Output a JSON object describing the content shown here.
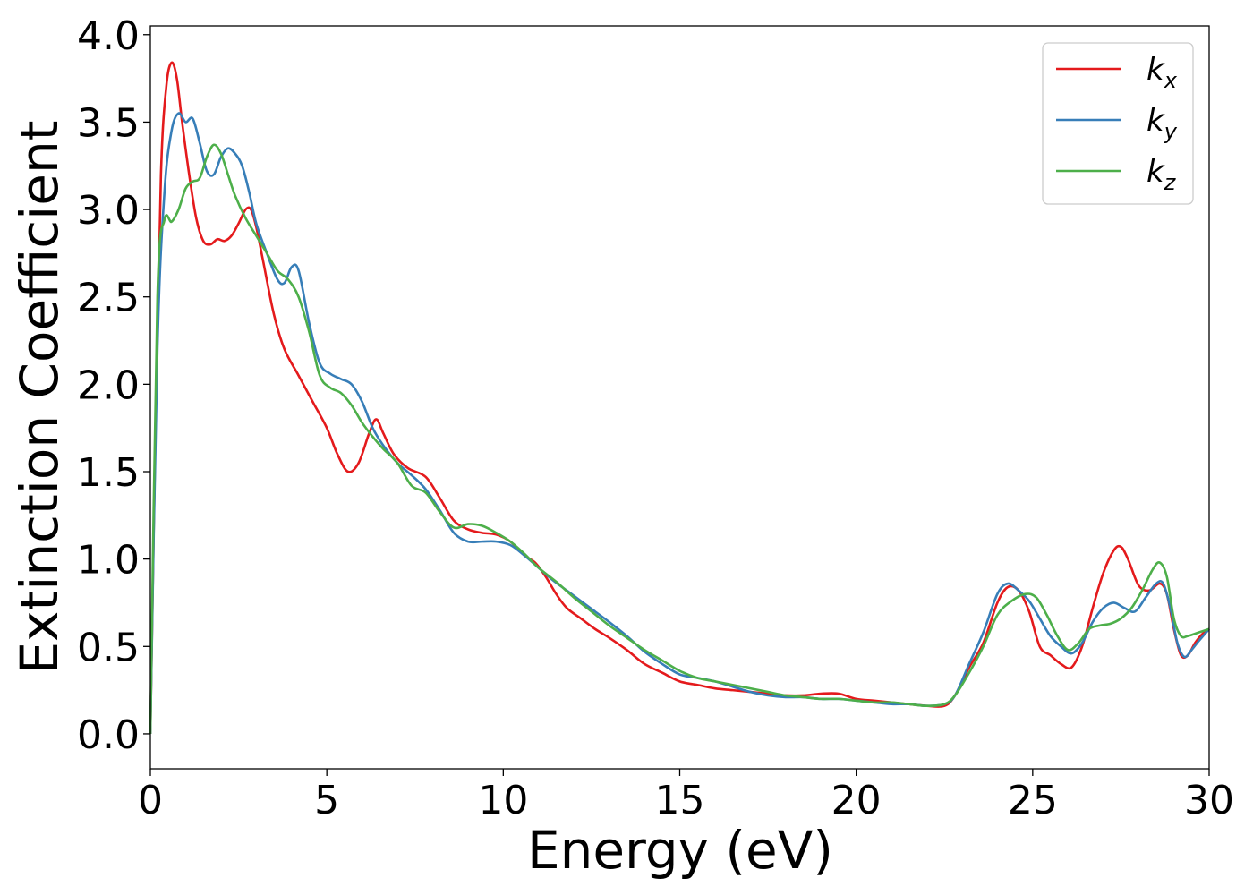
{
  "chart_data": {
    "type": "line",
    "title": "",
    "xlabel": "Energy (eV)",
    "ylabel": "Extinction Coefficient",
    "xlim": [
      0,
      30
    ],
    "ylim": [
      -0.2,
      4.05
    ],
    "xticks": [
      0,
      5,
      10,
      15,
      20,
      25,
      30
    ],
    "xtick_labels": [
      "0",
      "5",
      "10",
      "15",
      "20",
      "25",
      "30"
    ],
    "yticks": [
      0.0,
      0.5,
      1.0,
      1.5,
      2.0,
      2.5,
      3.0,
      3.5,
      4.0
    ],
    "ytick_labels": [
      "0.0",
      "0.5",
      "1.0",
      "1.5",
      "2.0",
      "2.5",
      "3.0",
      "3.5",
      "4.0"
    ],
    "grid": false,
    "legend_position": "top-right",
    "series": [
      {
        "name": "k",
        "subscript": "x",
        "color": "#e41a1c",
        "x": [
          0,
          0.15,
          0.3,
          0.45,
          0.6,
          0.75,
          0.9,
          1.1,
          1.3,
          1.5,
          1.7,
          1.9,
          2.1,
          2.3,
          2.5,
          2.7,
          2.85,
          3.0,
          3.2,
          3.5,
          3.8,
          4.2,
          4.6,
          5.0,
          5.3,
          5.6,
          5.9,
          6.2,
          6.4,
          6.6,
          6.9,
          7.3,
          7.8,
          8.2,
          8.6,
          9.0,
          9.4,
          9.8,
          10.2,
          10.6,
          10.9,
          11.2,
          11.5,
          11.8,
          12.2,
          12.6,
          13.0,
          13.5,
          14.0,
          14.5,
          15.0,
          15.5,
          16.0,
          16.5,
          17.0,
          17.5,
          18.0,
          18.5,
          19.0,
          19.5,
          20.0,
          20.5,
          21.0,
          21.5,
          22.0,
          22.5,
          22.8,
          23.2,
          23.6,
          24.0,
          24.3,
          24.6,
          24.9,
          25.2,
          25.5,
          25.8,
          26.1,
          26.4,
          26.7,
          27.0,
          27.3,
          27.5,
          27.7,
          28.0,
          28.3,
          28.6,
          28.8,
          29.0,
          29.2,
          29.4,
          29.6,
          29.8,
          30.0
        ],
        "y": [
          0.0,
          1.8,
          3.2,
          3.7,
          3.84,
          3.75,
          3.5,
          3.2,
          2.95,
          2.82,
          2.8,
          2.83,
          2.82,
          2.85,
          2.92,
          3.0,
          3.0,
          2.9,
          2.7,
          2.4,
          2.2,
          2.05,
          1.9,
          1.75,
          1.6,
          1.5,
          1.55,
          1.72,
          1.8,
          1.72,
          1.6,
          1.52,
          1.47,
          1.35,
          1.22,
          1.17,
          1.15,
          1.14,
          1.1,
          1.02,
          0.98,
          0.9,
          0.8,
          0.72,
          0.66,
          0.6,
          0.55,
          0.48,
          0.4,
          0.35,
          0.3,
          0.28,
          0.26,
          0.25,
          0.24,
          0.23,
          0.22,
          0.22,
          0.23,
          0.23,
          0.2,
          0.19,
          0.18,
          0.17,
          0.16,
          0.16,
          0.22,
          0.38,
          0.52,
          0.75,
          0.84,
          0.82,
          0.7,
          0.5,
          0.45,
          0.4,
          0.38,
          0.5,
          0.72,
          0.92,
          1.05,
          1.07,
          1.0,
          0.85,
          0.82,
          0.86,
          0.8,
          0.6,
          0.45,
          0.45,
          0.52,
          0.57,
          0.6
        ]
      },
      {
        "name": "k",
        "subscript": "y",
        "color": "#377eb8",
        "x": [
          0,
          0.2,
          0.4,
          0.6,
          0.8,
          1.0,
          1.2,
          1.4,
          1.6,
          1.8,
          2.0,
          2.2,
          2.4,
          2.6,
          2.8,
          3.0,
          3.3,
          3.6,
          3.8,
          4.0,
          4.2,
          4.5,
          4.8,
          5.1,
          5.4,
          5.7,
          6.0,
          6.3,
          6.6,
          7.0,
          7.4,
          7.8,
          8.2,
          8.6,
          9.0,
          9.4,
          9.8,
          10.2,
          10.6,
          11.0,
          11.4,
          11.8,
          12.2,
          12.6,
          13.0,
          13.5,
          14.0,
          14.5,
          15.0,
          15.5,
          16.0,
          16.5,
          17.0,
          17.5,
          18.0,
          18.5,
          19.0,
          19.5,
          20.0,
          20.5,
          21.0,
          21.5,
          22.0,
          22.5,
          22.8,
          23.2,
          23.6,
          24.0,
          24.3,
          24.6,
          24.9,
          25.2,
          25.5,
          25.8,
          26.1,
          26.4,
          26.7,
          27.0,
          27.3,
          27.6,
          27.9,
          28.2,
          28.5,
          28.7,
          28.9,
          29.1,
          29.3,
          29.5,
          29.7,
          30.0
        ],
        "y": [
          0.0,
          2.2,
          3.1,
          3.45,
          3.55,
          3.5,
          3.52,
          3.38,
          3.22,
          3.2,
          3.3,
          3.35,
          3.32,
          3.25,
          3.1,
          2.92,
          2.75,
          2.6,
          2.58,
          2.67,
          2.65,
          2.35,
          2.12,
          2.06,
          2.03,
          2.0,
          1.9,
          1.75,
          1.65,
          1.55,
          1.48,
          1.4,
          1.28,
          1.15,
          1.1,
          1.1,
          1.1,
          1.08,
          1.02,
          0.95,
          0.88,
          0.82,
          0.76,
          0.7,
          0.64,
          0.56,
          0.47,
          0.4,
          0.34,
          0.32,
          0.3,
          0.27,
          0.24,
          0.22,
          0.21,
          0.21,
          0.2,
          0.2,
          0.19,
          0.18,
          0.17,
          0.17,
          0.16,
          0.17,
          0.22,
          0.4,
          0.58,
          0.8,
          0.86,
          0.82,
          0.76,
          0.66,
          0.56,
          0.5,
          0.46,
          0.52,
          0.64,
          0.72,
          0.75,
          0.72,
          0.7,
          0.78,
          0.86,
          0.86,
          0.72,
          0.52,
          0.44,
          0.48,
          0.53,
          0.6
        ]
      },
      {
        "name": "k",
        "subscript": "z",
        "color": "#4daf4a",
        "x": [
          0,
          0.2,
          0.4,
          0.6,
          0.8,
          1.0,
          1.2,
          1.4,
          1.6,
          1.8,
          2.0,
          2.2,
          2.4,
          2.7,
          3.0,
          3.3,
          3.6,
          3.9,
          4.2,
          4.5,
          4.8,
          5.1,
          5.4,
          5.7,
          6.0,
          6.3,
          6.6,
          7.0,
          7.4,
          7.8,
          8.2,
          8.6,
          9.0,
          9.4,
          9.8,
          10.2,
          10.6,
          11.0,
          11.5,
          12.0,
          12.5,
          13.0,
          13.5,
          14.0,
          14.5,
          15.0,
          15.5,
          16.0,
          16.5,
          17.0,
          17.5,
          18.0,
          18.5,
          19.0,
          19.5,
          20.0,
          20.5,
          21.0,
          21.5,
          22.0,
          22.5,
          22.8,
          23.2,
          23.6,
          24.0,
          24.4,
          24.8,
          25.1,
          25.4,
          25.7,
          26.0,
          26.3,
          26.6,
          26.9,
          27.2,
          27.5,
          27.8,
          28.1,
          28.4,
          28.6,
          28.8,
          29.0,
          29.2,
          29.4,
          29.7,
          30.0
        ],
        "y": [
          0.0,
          2.5,
          2.94,
          2.93,
          3.0,
          3.12,
          3.16,
          3.18,
          3.3,
          3.37,
          3.32,
          3.2,
          3.08,
          2.95,
          2.85,
          2.75,
          2.65,
          2.6,
          2.5,
          2.3,
          2.05,
          1.98,
          1.95,
          1.88,
          1.78,
          1.7,
          1.63,
          1.55,
          1.42,
          1.38,
          1.27,
          1.18,
          1.2,
          1.19,
          1.15,
          1.1,
          1.03,
          0.95,
          0.87,
          0.78,
          0.7,
          0.62,
          0.55,
          0.48,
          0.42,
          0.36,
          0.32,
          0.3,
          0.28,
          0.26,
          0.24,
          0.22,
          0.21,
          0.2,
          0.2,
          0.19,
          0.18,
          0.18,
          0.17,
          0.16,
          0.17,
          0.22,
          0.35,
          0.5,
          0.68,
          0.76,
          0.8,
          0.78,
          0.68,
          0.56,
          0.48,
          0.52,
          0.6,
          0.62,
          0.63,
          0.66,
          0.72,
          0.82,
          0.94,
          0.98,
          0.9,
          0.66,
          0.56,
          0.56,
          0.58,
          0.6
        ]
      }
    ]
  }
}
